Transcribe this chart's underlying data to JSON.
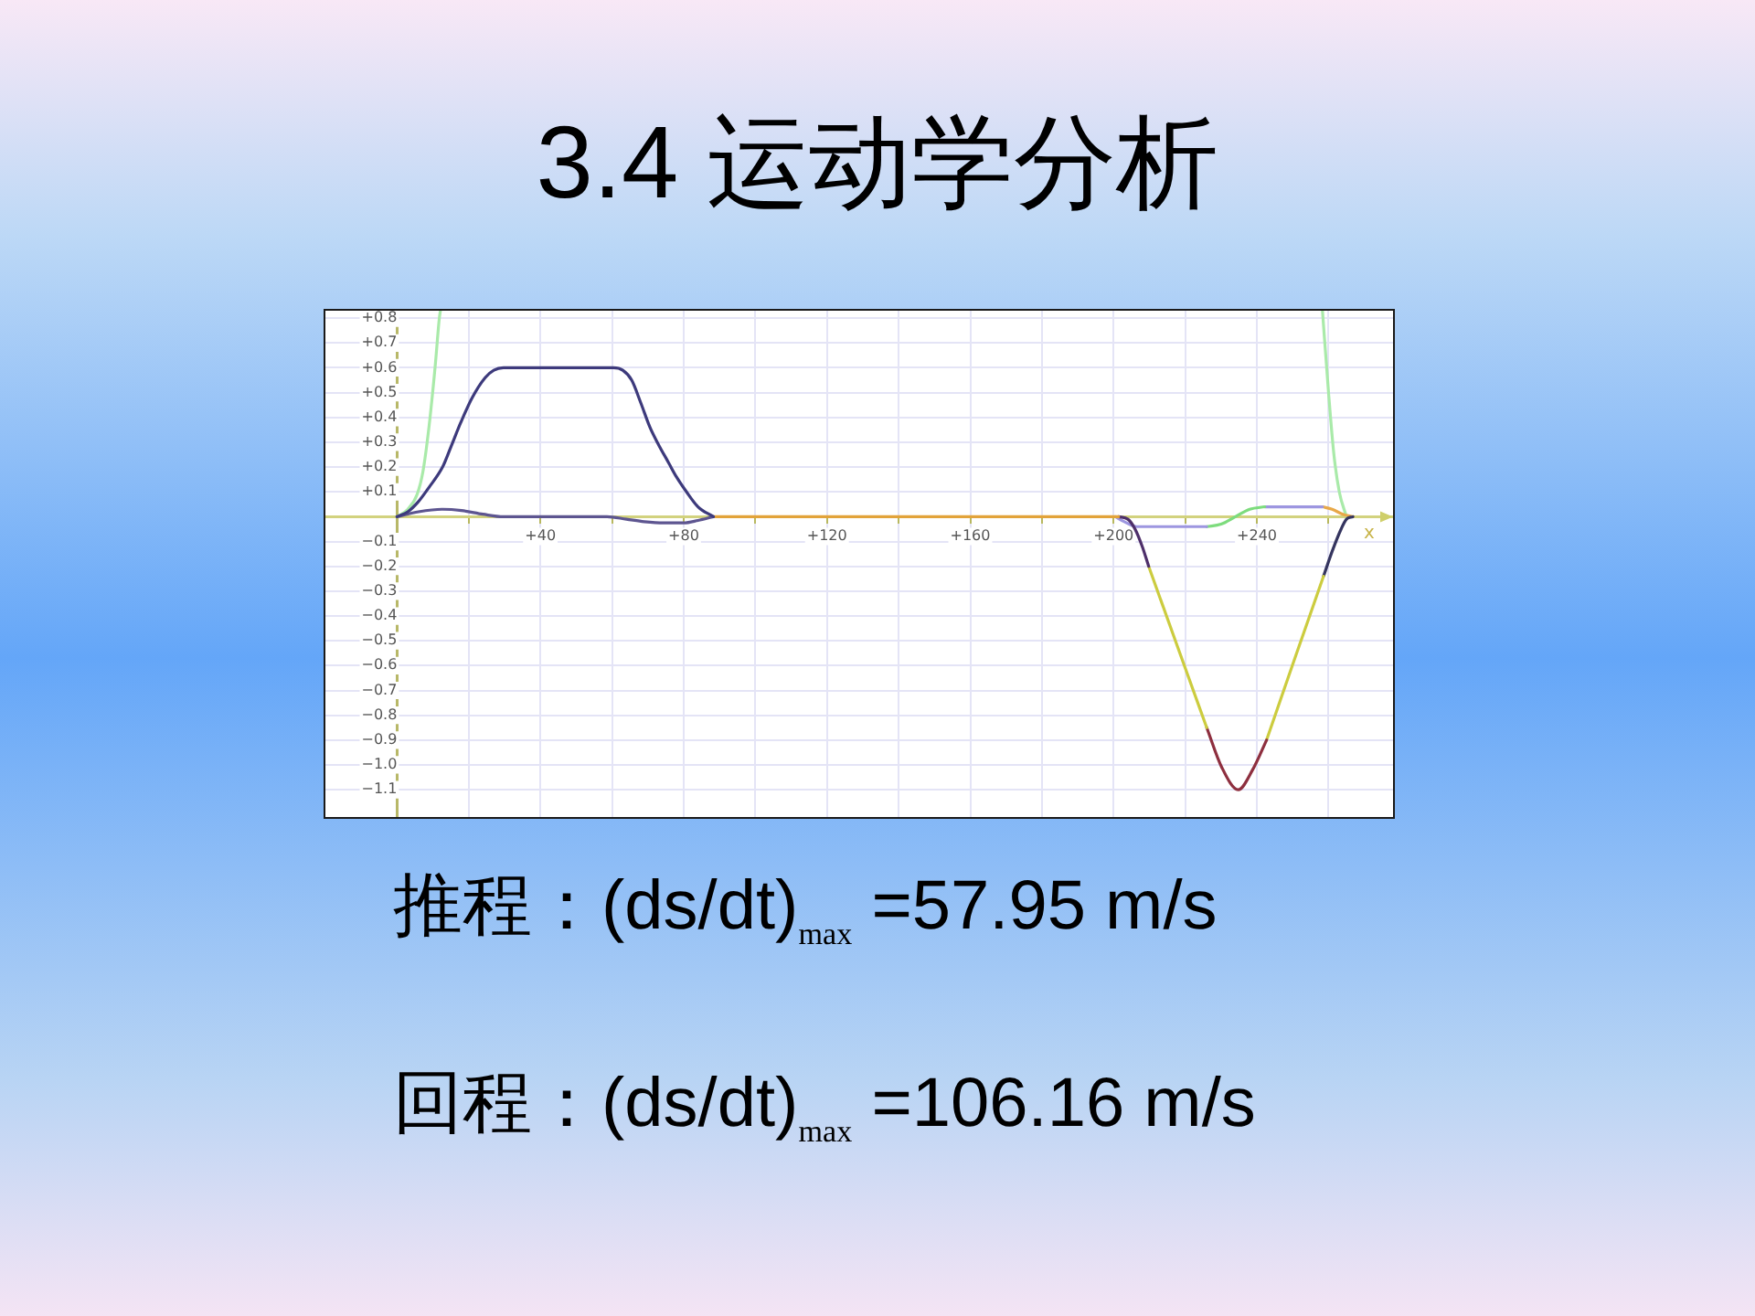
{
  "chart_data": {
    "type": "line",
    "title": "3.4 运动学分析",
    "xlabel": "x",
    "annotations": [
      "推程：(ds/dt)$_{max}$ =57.95 m/s",
      "回程：(ds/dt)$_{max}$ =106.16 m/s"
    ],
    "xlim": [
      -20,
      278
    ],
    "ylim": [
      -1.21,
      0.83
    ],
    "xticks": [
      {
        "value": 20,
        "label": null
      },
      {
        "value": 40,
        "label": "+40"
      },
      {
        "value": 60,
        "label": null
      },
      {
        "value": 80,
        "label": "+80"
      },
      {
        "value": 100,
        "label": null
      },
      {
        "value": 120,
        "label": "+120"
      },
      {
        "value": 140,
        "label": null
      },
      {
        "value": 160,
        "label": "+160"
      },
      {
        "value": 180,
        "label": null
      },
      {
        "value": 200,
        "label": "+200"
      },
      {
        "value": 220,
        "label": null
      },
      {
        "value": 240,
        "label": "+240"
      },
      {
        "value": 260,
        "label": null
      }
    ],
    "yticks": [
      {
        "value": -1.1,
        "label": "−1.1"
      },
      {
        "value": -1,
        "label": "−1.0"
      },
      {
        "value": -0.9,
        "label": "−0.9"
      },
      {
        "value": -0.8,
        "label": "−0.8"
      },
      {
        "value": -0.7,
        "label": "−0.7"
      },
      {
        "value": -0.6,
        "label": "−0.6"
      },
      {
        "value": -0.5,
        "label": "−0.5"
      },
      {
        "value": -0.4,
        "label": "−0.4"
      },
      {
        "value": -0.3,
        "label": "−0.3"
      },
      {
        "value": -0.2,
        "label": "−0.2"
      },
      {
        "value": -0.1,
        "label": "−0.1"
      },
      {
        "value": 0.1,
        "label": "+0.1"
      },
      {
        "value": 0.2,
        "label": "+0.2"
      },
      {
        "value": 0.3,
        "label": "+0.3"
      },
      {
        "value": 0.4,
        "label": "+0.4"
      },
      {
        "value": 0.5,
        "label": "+0.5"
      },
      {
        "value": 0.6,
        "label": "+0.6"
      },
      {
        "value": 0.7,
        "label": "+0.7"
      },
      {
        "value": 0.8,
        "label": "+0.8"
      }
    ],
    "grid": true,
    "series": [
      {
        "color": "#3d3a7c",
        "x": [
          0,
          3,
          5.9,
          9,
          12.7,
          15,
          17.8,
          21,
          24.6,
          27,
          29.7,
          60.4,
          63,
          65.5,
          68,
          70.6,
          73,
          75.7,
          78,
          80.8,
          84,
          88.3
        ],
        "values": [
          0,
          0.02,
          0.06,
          0.12,
          0.2,
          0.28,
          0.38,
          0.48,
          0.56,
          0.59,
          0.6,
          0.6,
          0.59,
          0.55,
          0.46,
          0.36,
          0.29,
          0.22,
          0.16,
          0.1,
          0.04,
          0
        ]
      },
      {
        "color": "#5d5590",
        "x": [
          0,
          6,
          12.6,
          18,
          24,
          29.7,
          58.6,
          64,
          69,
          74.4,
          80,
          84,
          88.3
        ],
        "values": [
          0,
          0.02,
          0.03,
          0.025,
          0.01,
          0,
          0,
          -0.01,
          -0.02,
          -0.025,
          -0.025,
          -0.015,
          0
        ]
      },
      {
        "color": "#a9eaa9",
        "x": [
          0,
          3,
          5.6,
          7.2,
          8.9,
          10.6,
          11.8,
          12.1
        ],
        "values": [
          0,
          0.03,
          0.09,
          0.18,
          0.36,
          0.6,
          0.8,
          0.83
        ]
      },
      {
        "color": "#e2a33a",
        "x": [
          88.3,
          201.4
        ],
        "values": [
          0,
          0
        ]
      },
      {
        "color": "#4e2f6a",
        "x": [
          201.4,
          204,
          206,
          208,
          209.8
        ],
        "values": [
          0,
          -0.01,
          -0.05,
          -0.12,
          -0.2
        ]
      },
      {
        "color": "#cccc3f",
        "x": [
          209.8,
          218,
          226
        ],
        "values": [
          -0.2,
          -0.53,
          -0.85
        ]
      },
      {
        "color": "#8e2f3f",
        "x": [
          226,
          230.2,
          234.8,
          238.8,
          242.7
        ],
        "values": [
          -0.85,
          -1.01,
          -1.1,
          -1.02,
          -0.9
        ]
      },
      {
        "color": "#cccc3f",
        "x": [
          242.7,
          250.6,
          258.6
        ],
        "values": [
          -0.9,
          -0.57,
          -0.24
        ]
      },
      {
        "color": "#35355f",
        "x": [
          258.6,
          261,
          263.5,
          265,
          266.8
        ],
        "values": [
          -0.24,
          -0.14,
          -0.05,
          -0.01,
          0
        ]
      },
      {
        "color": "#9d96e0",
        "x": [
          200.5,
          203,
          206.5,
          226
        ],
        "values": [
          0,
          -0.02,
          -0.04,
          -0.04
        ]
      },
      {
        "color": "#7ddc7d",
        "x": [
          226,
          230,
          234,
          238,
          242.2
        ],
        "values": [
          -0.04,
          -0.03,
          0,
          0.03,
          0.04
        ]
      },
      {
        "color": "#9d96e0",
        "x": [
          242.2,
          258.3
        ],
        "values": [
          0.04,
          0.04
        ]
      },
      {
        "color": "#e8a848",
        "x": [
          258.3,
          261,
          264,
          266.8
        ],
        "values": [
          0.04,
          0.03,
          0.01,
          0
        ]
      },
      {
        "color": "#a9eaa9",
        "x": [
          258.3,
          260,
          261.5,
          263,
          265
        ],
        "values": [
          0.83,
          0.5,
          0.25,
          0.1,
          0
        ]
      }
    ]
  }
}
